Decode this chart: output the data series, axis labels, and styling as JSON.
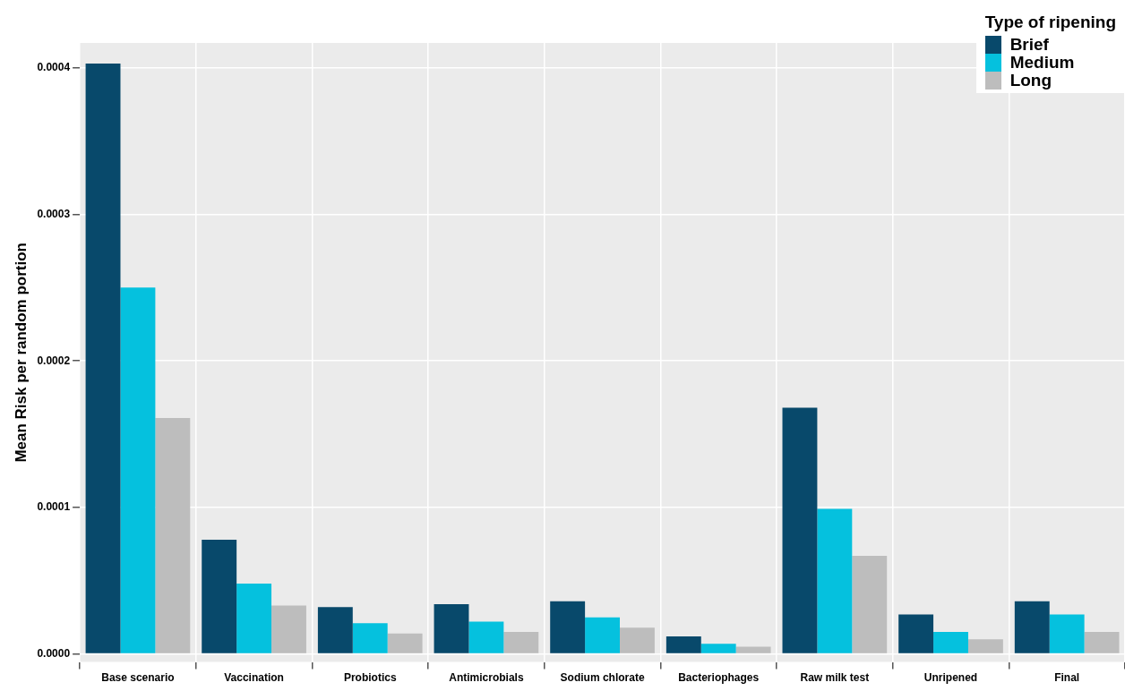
{
  "chart_data": {
    "type": "bar",
    "ylabel": "Mean Risk per random portion",
    "legend_title": "Type of ripening",
    "categories": [
      "Base scenario",
      "Vaccination",
      "Probiotics",
      "Antimicrobials",
      "Sodium chlorate",
      "Bacteriophages",
      "Raw milk test",
      "Unripened",
      "Final"
    ],
    "series": [
      {
        "name": "Brief",
        "color": "#08496b",
        "values": [
          0.000403,
          7.8e-05,
          3.2e-05,
          3.4e-05,
          3.6e-05,
          1.2e-05,
          0.000168,
          2.7e-05,
          3.6e-05
        ]
      },
      {
        "name": "Medium",
        "color": "#05c1de",
        "values": [
          0.00025,
          4.8e-05,
          2.1e-05,
          2.2e-05,
          2.5e-05,
          7e-06,
          9.9e-05,
          1.5e-05,
          2.7e-05
        ]
      },
      {
        "name": "Long",
        "color": "#bdbdbd",
        "values": [
          0.000161,
          3.3e-05,
          1.4e-05,
          1.5e-05,
          1.8e-05,
          5e-06,
          6.7e-05,
          1e-05,
          1.5e-05
        ]
      }
    ],
    "ylim": [
      -5.5e-06,
      0.000417
    ],
    "yticks": [
      {
        "value": 0,
        "label": "0.0000"
      },
      {
        "value": 0.0001,
        "label": "0.0001"
      },
      {
        "value": 0.0002,
        "label": "0.0002"
      },
      {
        "value": 0.0003,
        "label": "0.0003"
      },
      {
        "value": 0.0004,
        "label": "0.0004"
      }
    ],
    "grid": true,
    "legend": "top right"
  }
}
